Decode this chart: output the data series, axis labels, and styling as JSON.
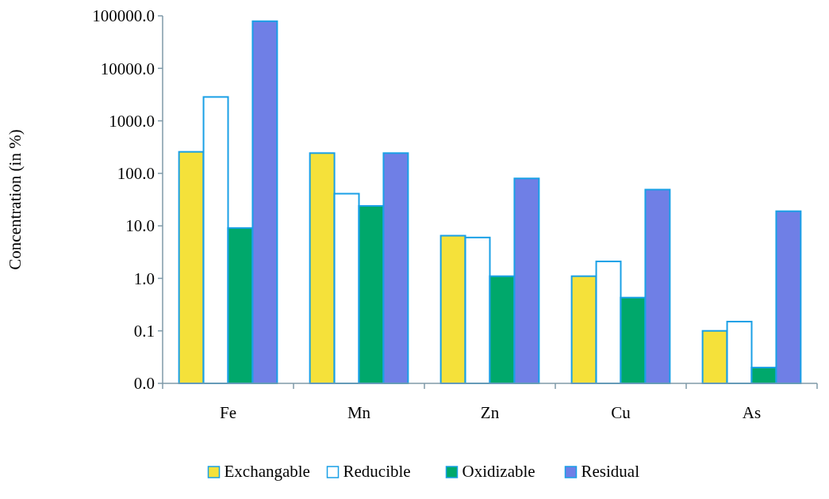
{
  "chart_data": {
    "type": "bar",
    "ylabel": "Concentration (in %)",
    "log": true,
    "categories": [
      "Fe",
      "Mn",
      "Zn",
      "Cu",
      "As"
    ],
    "series": [
      {
        "name": "Exchangable",
        "color": "#f5e13a",
        "values": [
          257,
          243,
          6.5,
          1.1,
          0.1
        ]
      },
      {
        "name": "Reducible",
        "color": "#ffffff",
        "values": [
          2850,
          41,
          6.0,
          2.1,
          0.15
        ]
      },
      {
        "name": "Oxidizable",
        "color": "#00a86b",
        "values": [
          9.1,
          24,
          1.1,
          0.43,
          0.02
        ]
      },
      {
        "name": "Residual",
        "color": "#6f7fe6",
        "values": [
          79000,
          243,
          80,
          49,
          19
        ]
      }
    ],
    "ylim": [
      0.01,
      100000
    ],
    "yticks": [
      {
        "value": 0.01,
        "label": "0.0"
      },
      {
        "value": 0.1,
        "label": "0.1"
      },
      {
        "value": 1,
        "label": "1.0"
      },
      {
        "value": 10,
        "label": "10.0"
      },
      {
        "value": 100,
        "label": "100.0"
      },
      {
        "value": 1000,
        "label": "1000.0"
      },
      {
        "value": 10000,
        "label": "10000.0"
      },
      {
        "value": 100000,
        "label": "100000.0"
      }
    ],
    "grid": false,
    "legend": "bottom"
  }
}
